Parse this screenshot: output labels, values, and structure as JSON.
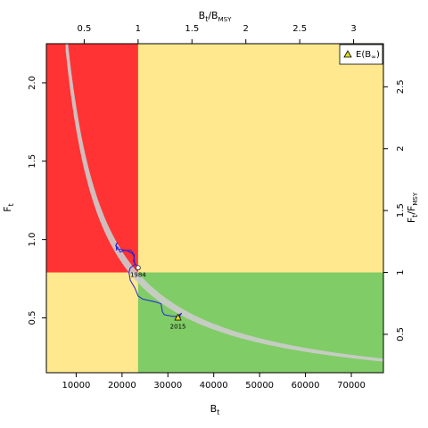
{
  "chart_data": {
    "type": "line",
    "title": "",
    "xlabel": "B",
    "xlabel_sub": "t",
    "ylabel": "F",
    "ylabel_sub": "t",
    "top_axis_label": {
      "num": "B",
      "num_sub": "t",
      "sep": "/",
      "den": "B",
      "den_sub": "MSY"
    },
    "right_axis_label": {
      "num": "F",
      "num_sub": "t",
      "sep": "/",
      "den": "F",
      "den_sub": "MSY"
    },
    "xlim": [
      3500,
      77000
    ],
    "ylim": [
      0.15,
      2.25
    ],
    "bmsy": 23500,
    "fmsy": 0.79,
    "x_ticks": [
      10000,
      20000,
      30000,
      40000,
      50000,
      60000,
      70000
    ],
    "x_tick_labels": [
      "10000",
      "20000",
      "30000",
      "40000",
      "50000",
      "60000",
      "70000"
    ],
    "y_ticks": [
      0.5,
      1.0,
      1.5,
      2.0
    ],
    "y_tick_labels": [
      "0.5",
      "1.0",
      "1.5",
      "2.0"
    ],
    "top_ticks": [
      0.5,
      1,
      1.5,
      2,
      2.5,
      3
    ],
    "top_tick_labels": [
      "0.5",
      "1",
      "1.5",
      "2",
      "2.5",
      "3"
    ],
    "right_ticks": [
      0.5,
      1,
      1.5,
      2,
      2.5
    ],
    "right_tick_labels": [
      "0.5",
      "1",
      "1.5",
      "2",
      "2.5"
    ],
    "zones": [
      {
        "name": "overfished-overfishing",
        "color": "#ff3333"
      },
      {
        "name": "overfished-or-overfishing",
        "color": "#ffe88e"
      },
      {
        "name": "sustainable",
        "color": "#80cc66"
      }
    ],
    "msy_band": {
      "color": "#cccccc",
      "upper_k": 18500,
      "lower_k": 17000,
      "x_start": 7700,
      "x_end": 77000
    },
    "trajectory": {
      "color": "#2222dd",
      "x": [
        23500,
        23000,
        22500,
        22700,
        22000,
        20500,
        19600,
        19000,
        18800,
        18700,
        19000,
        18600,
        19100,
        19200,
        21000,
        22300,
        22600,
        22800,
        21800,
        21500,
        21800,
        22800,
        23500,
        24500,
        27500,
        28500,
        28800,
        29200,
        29300,
        31000,
        32500,
        33000,
        32500,
        32200
      ],
      "y": [
        0.82,
        0.84,
        0.86,
        0.9,
        0.93,
        0.93,
        0.92,
        0.95,
        0.93,
        0.97,
        0.98,
        0.96,
        0.95,
        0.94,
        0.93,
        0.91,
        0.89,
        0.84,
        0.82,
        0.79,
        0.74,
        0.69,
        0.64,
        0.62,
        0.6,
        0.59,
        0.54,
        0.52,
        0.52,
        0.51,
        0.51,
        0.53,
        0.52,
        0.5
      ]
    },
    "points": [
      {
        "label": "1984",
        "x": 23500,
        "y": 0.82
      },
      {
        "label": "2015",
        "x": 32200,
        "y": 0.5
      }
    ],
    "e_binf": {
      "x": 32200,
      "y": 0.5,
      "color": "#dddd22"
    },
    "legend": {
      "label": "E(B",
      "label_sub": "∞",
      "label_close": ")",
      "position": "top-right"
    }
  }
}
